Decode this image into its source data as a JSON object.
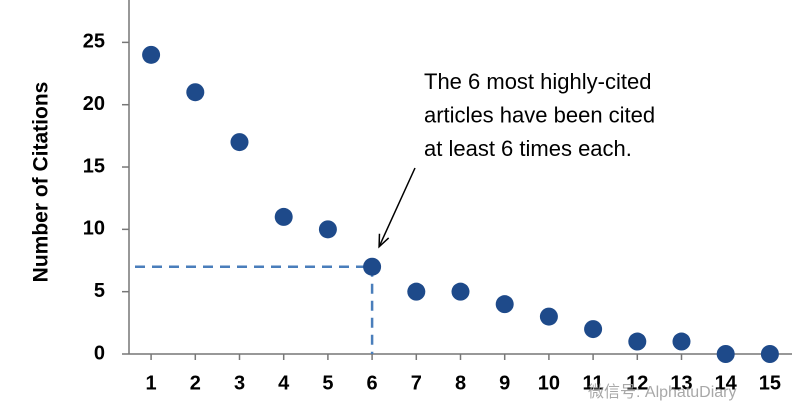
{
  "chart_data": {
    "type": "scatter",
    "y_label": "Number of Citations",
    "x": [
      1,
      2,
      3,
      4,
      5,
      6,
      7,
      8,
      9,
      10,
      11,
      12,
      13,
      14,
      15
    ],
    "series": [
      {
        "color": "#1e4a8a",
        "values": [
          24,
          21,
          17,
          11,
          10,
          7,
          5,
          5,
          4,
          3,
          2,
          1,
          1,
          0,
          0
        ]
      }
    ],
    "xlim": [
      0.5,
      15.5
    ],
    "xticks": [
      1,
      2,
      3,
      4,
      5,
      6,
      7,
      8,
      9,
      10,
      11,
      12,
      13,
      14,
      15
    ],
    "ylim": [
      0,
      28.4
    ],
    "yticks": [
      0,
      5,
      10,
      15,
      20,
      25
    ],
    "annotation": [
      "The 6 most highly-cited",
      "articles have been cited",
      "at least 6 times each."
    ],
    "watermark": "微信号: AlphatuDiary"
  }
}
